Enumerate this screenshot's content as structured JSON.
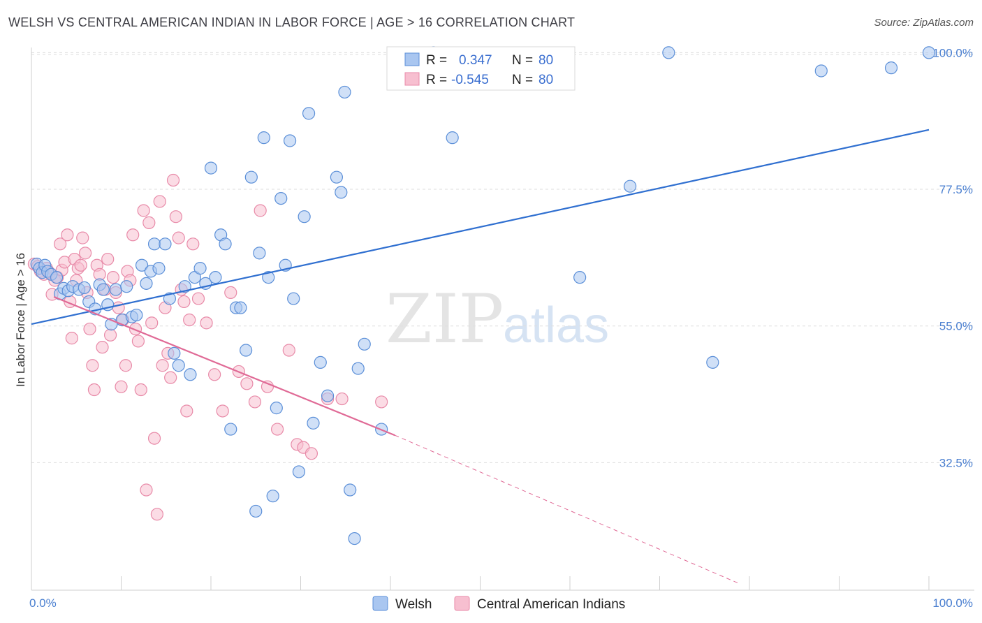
{
  "header": {
    "title": "WELSH VS CENTRAL AMERICAN INDIAN IN LABOR FORCE | AGE > 16 CORRELATION CHART",
    "source": "Source: ZipAtlas.com"
  },
  "watermark": {
    "part1": "ZIP",
    "part2": "atlas"
  },
  "legend": {
    "rows": [
      {
        "r_label": "R =",
        "r_value": "0.347",
        "n_label": "N =",
        "n_value": "80"
      },
      {
        "r_label": "R =",
        "r_value": "-0.545",
        "n_label": "N =",
        "n_value": "80"
      }
    ]
  },
  "colors": {
    "welsh_fill": "#a9c6f0",
    "welsh_stroke": "#5b8fd8",
    "welsh_line": "#2f6fd0",
    "cai_fill": "#f7bfd0",
    "cai_stroke": "#e88aa8",
    "cai_line": "#e06a96",
    "grid": "#dedede",
    "axis_label": "#4a7fd0"
  },
  "chart_data": {
    "type": "scatter",
    "title": "WELSH VS CENTRAL AMERICAN INDIAN IN LABOR FORCE | AGE > 16 CORRELATION CHART",
    "xlabel": "",
    "ylabel": "In Labor Force | Age > 16",
    "xlim": [
      0,
      100
    ],
    "ylim": [
      11.5,
      102
    ],
    "x_tick_labels": [
      "0.0%",
      "100.0%"
    ],
    "y_ticks": [
      32.5,
      55.0,
      77.5,
      100.0
    ],
    "y_tick_labels": [
      "32.5%",
      "55.0%",
      "77.5%",
      "100.0%"
    ],
    "grid": true,
    "legend_position": "top-center",
    "series": [
      {
        "name": "Welsh",
        "r": 0.347,
        "n": 80,
        "trend": {
          "x": [
            0,
            100
          ],
          "y": [
            55.3,
            87.3
          ]
        },
        "points": [
          [
            0.6,
            65.2
          ],
          [
            0.9,
            64.5
          ],
          [
            1.2,
            63.8
          ],
          [
            1.5,
            65.0
          ],
          [
            1.8,
            64.0
          ],
          [
            2.2,
            63.5
          ],
          [
            2.8,
            63.0
          ],
          [
            3.2,
            60.3
          ],
          [
            3.6,
            61.2
          ],
          [
            4.1,
            60.8
          ],
          [
            4.6,
            61.5
          ],
          [
            5.3,
            61.0
          ],
          [
            5.9,
            61.3
          ],
          [
            6.4,
            59.0
          ],
          [
            7.1,
            57.8
          ],
          [
            7.6,
            61.8
          ],
          [
            8.0,
            61.0
          ],
          [
            8.5,
            58.5
          ],
          [
            8.9,
            55.3
          ],
          [
            9.4,
            61.0
          ],
          [
            10.1,
            56.0
          ],
          [
            10.6,
            61.5
          ],
          [
            11.2,
            56.5
          ],
          [
            11.7,
            56.8
          ],
          [
            12.3,
            65.0
          ],
          [
            12.8,
            62.0
          ],
          [
            13.3,
            64.0
          ],
          [
            13.7,
            68.5
          ],
          [
            14.2,
            64.5
          ],
          [
            14.9,
            68.5
          ],
          [
            15.4,
            59.5
          ],
          [
            15.9,
            50.5
          ],
          [
            16.4,
            48.5
          ],
          [
            17.1,
            61.5
          ],
          [
            17.7,
            47.0
          ],
          [
            18.2,
            63.0
          ],
          [
            18.8,
            64.5
          ],
          [
            19.4,
            62.0
          ],
          [
            20.0,
            81.0
          ],
          [
            20.5,
            63.0
          ],
          [
            21.1,
            70.0
          ],
          [
            21.6,
            68.5
          ],
          [
            22.2,
            38.0
          ],
          [
            22.8,
            58.0
          ],
          [
            23.3,
            58.0
          ],
          [
            23.9,
            51.0
          ],
          [
            24.5,
            79.5
          ],
          [
            25.0,
            24.5
          ],
          [
            25.4,
            67.0
          ],
          [
            25.9,
            86.0
          ],
          [
            26.4,
            63.0
          ],
          [
            26.9,
            27.0
          ],
          [
            27.3,
            41.5
          ],
          [
            27.8,
            76.0
          ],
          [
            28.3,
            65.0
          ],
          [
            28.8,
            85.5
          ],
          [
            29.2,
            59.5
          ],
          [
            29.8,
            31.0
          ],
          [
            30.4,
            73.0
          ],
          [
            30.9,
            90.0
          ],
          [
            31.4,
            39.0
          ],
          [
            32.2,
            49.0
          ],
          [
            33.0,
            43.5
          ],
          [
            34.0,
            79.5
          ],
          [
            34.5,
            77.0
          ],
          [
            34.9,
            93.5
          ],
          [
            35.5,
            28.0
          ],
          [
            36.0,
            20.0
          ],
          [
            36.4,
            48.0
          ],
          [
            37.1,
            52.0
          ],
          [
            39.0,
            38.0
          ],
          [
            44.8,
            100.0
          ],
          [
            46.9,
            86.0
          ],
          [
            61.1,
            63.0
          ],
          [
            66.7,
            78.0
          ],
          [
            71.0,
            100.0
          ],
          [
            75.9,
            49.0
          ],
          [
            88.0,
            97.0
          ],
          [
            95.8,
            97.5
          ],
          [
            100.0,
            100.0
          ]
        ]
      },
      {
        "name": "Central American Indians",
        "r": -0.545,
        "n": 80,
        "trend": {
          "x": [
            2.5,
            40.5
          ],
          "y": [
            59.8,
            37.0
          ]
        },
        "trend_dashed": {
          "x": [
            40.5,
            79.0
          ],
          "y": [
            37.0,
            12.5
          ]
        },
        "points": [
          [
            0.3,
            65.2
          ],
          [
            0.7,
            64.8
          ],
          [
            1.0,
            64.0
          ],
          [
            1.4,
            63.5
          ],
          [
            1.7,
            64.5
          ],
          [
            2.0,
            63.8
          ],
          [
            2.3,
            60.2
          ],
          [
            2.6,
            62.5
          ],
          [
            2.9,
            63.0
          ],
          [
            3.2,
            68.5
          ],
          [
            3.4,
            64.2
          ],
          [
            3.7,
            65.5
          ],
          [
            4.0,
            70.0
          ],
          [
            4.3,
            59.0
          ],
          [
            4.5,
            53.0
          ],
          [
            4.8,
            66.0
          ],
          [
            5.0,
            62.5
          ],
          [
            5.2,
            64.5
          ],
          [
            5.5,
            65.0
          ],
          [
            5.7,
            69.5
          ],
          [
            6.0,
            67.0
          ],
          [
            6.2,
            60.5
          ],
          [
            6.5,
            54.5
          ],
          [
            6.8,
            48.5
          ],
          [
            7.0,
            44.5
          ],
          [
            7.3,
            65.0
          ],
          [
            7.6,
            63.5
          ],
          [
            7.9,
            51.5
          ],
          [
            8.2,
            61.0
          ],
          [
            8.5,
            66.0
          ],
          [
            8.8,
            53.5
          ],
          [
            9.1,
            63.0
          ],
          [
            9.4,
            60.5
          ],
          [
            9.7,
            58.0
          ],
          [
            10.0,
            45.0
          ],
          [
            10.2,
            56.0
          ],
          [
            10.5,
            48.5
          ],
          [
            10.7,
            64.0
          ],
          [
            11.0,
            62.5
          ],
          [
            11.3,
            70.0
          ],
          [
            11.6,
            54.5
          ],
          [
            11.9,
            52.5
          ],
          [
            12.2,
            44.5
          ],
          [
            12.5,
            74.0
          ],
          [
            12.8,
            28.0
          ],
          [
            13.1,
            72.0
          ],
          [
            13.4,
            55.5
          ],
          [
            13.7,
            36.5
          ],
          [
            14.0,
            24.0
          ],
          [
            14.3,
            75.5
          ],
          [
            14.6,
            48.5
          ],
          [
            14.9,
            58.0
          ],
          [
            15.2,
            50.5
          ],
          [
            15.5,
            46.5
          ],
          [
            15.8,
            79.0
          ],
          [
            16.1,
            73.0
          ],
          [
            16.4,
            69.5
          ],
          [
            16.7,
            61.0
          ],
          [
            17.0,
            59.0
          ],
          [
            17.3,
            41.0
          ],
          [
            17.6,
            56.0
          ],
          [
            18.0,
            68.5
          ],
          [
            18.6,
            59.5
          ],
          [
            19.5,
            55.5
          ],
          [
            20.4,
            47.0
          ],
          [
            21.3,
            41.0
          ],
          [
            22.2,
            60.5
          ],
          [
            23.1,
            47.5
          ],
          [
            24.0,
            45.5
          ],
          [
            24.9,
            42.5
          ],
          [
            25.5,
            74.0
          ],
          [
            26.3,
            45.0
          ],
          [
            27.4,
            38.0
          ],
          [
            28.7,
            51.0
          ],
          [
            29.6,
            35.5
          ],
          [
            30.3,
            35.0
          ],
          [
            31.2,
            34.0
          ],
          [
            33.0,
            43.0
          ],
          [
            34.6,
            43.0
          ],
          [
            39.0,
            42.5
          ]
        ]
      }
    ]
  }
}
